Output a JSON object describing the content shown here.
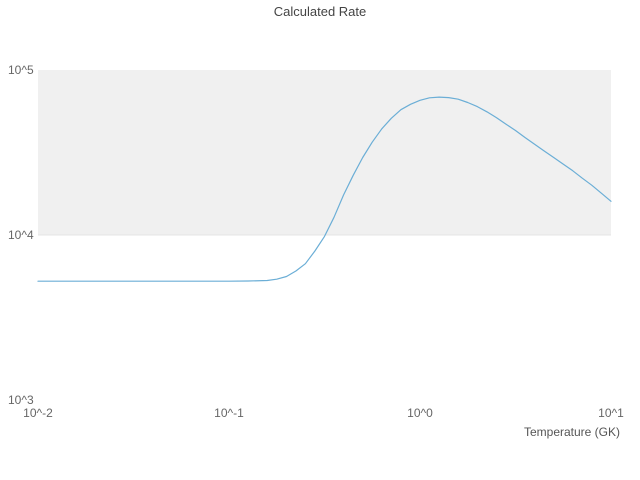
{
  "chart_data": {
    "type": "line",
    "title": "Calculated Rate",
    "xlabel": "Temperature (GK)",
    "ylabel": "",
    "x_scale": "log",
    "y_scale": "log",
    "x_range": [
      0.01,
      10
    ],
    "y_range": [
      1000,
      100000
    ],
    "grid": false,
    "legend": "none",
    "x_ticks": [
      "10^-2",
      "10^-1",
      "10^0",
      "10^1"
    ],
    "x_tick_values": [
      0.01,
      0.1,
      1,
      10
    ],
    "y_ticks": [
      "10^5",
      "10^4",
      "10^3"
    ],
    "y_tick_values": [
      100000,
      10000,
      1000
    ],
    "line_color": "#6baed6",
    "shaded_band": {
      "y_from": 10000,
      "y_to": 100000,
      "color": "#f0f0f0"
    },
    "series": [
      {
        "name": "Calculated Rate",
        "points": [
          [
            0.01,
            5250
          ],
          [
            0.0126,
            5250
          ],
          [
            0.0158,
            5250
          ],
          [
            0.02,
            5250
          ],
          [
            0.0251,
            5250
          ],
          [
            0.0316,
            5250
          ],
          [
            0.0398,
            5250
          ],
          [
            0.0501,
            5250
          ],
          [
            0.0631,
            5250
          ],
          [
            0.0794,
            5250
          ],
          [
            0.1,
            5250
          ],
          [
            0.1259,
            5260
          ],
          [
            0.1585,
            5300
          ],
          [
            0.1778,
            5400
          ],
          [
            0.2,
            5600
          ],
          [
            0.2239,
            6050
          ],
          [
            0.2512,
            6700
          ],
          [
            0.2818,
            8000
          ],
          [
            0.3162,
            9800
          ],
          [
            0.3548,
            12800
          ],
          [
            0.3981,
            17500
          ],
          [
            0.4467,
            23000
          ],
          [
            0.5012,
            29500
          ],
          [
            0.5623,
            36500
          ],
          [
            0.631,
            44000
          ],
          [
            0.7079,
            51000
          ],
          [
            0.7943,
            57500
          ],
          [
            0.8913,
            62000
          ],
          [
            1.0,
            65500
          ],
          [
            1.122,
            67800
          ],
          [
            1.259,
            68500
          ],
          [
            1.413,
            68000
          ],
          [
            1.585,
            66500
          ],
          [
            1.778,
            63500
          ],
          [
            1.995,
            60000
          ],
          [
            2.239,
            55800
          ],
          [
            2.512,
            51500
          ],
          [
            2.818,
            47000
          ],
          [
            3.162,
            43000
          ],
          [
            3.548,
            39000
          ],
          [
            3.981,
            35500
          ],
          [
            4.467,
            32300
          ],
          [
            5.012,
            29500
          ],
          [
            5.623,
            26900
          ],
          [
            6.31,
            24500
          ],
          [
            7.079,
            22100
          ],
          [
            7.943,
            20000
          ],
          [
            8.913,
            17900
          ],
          [
            10.0,
            16000
          ]
        ]
      }
    ]
  }
}
